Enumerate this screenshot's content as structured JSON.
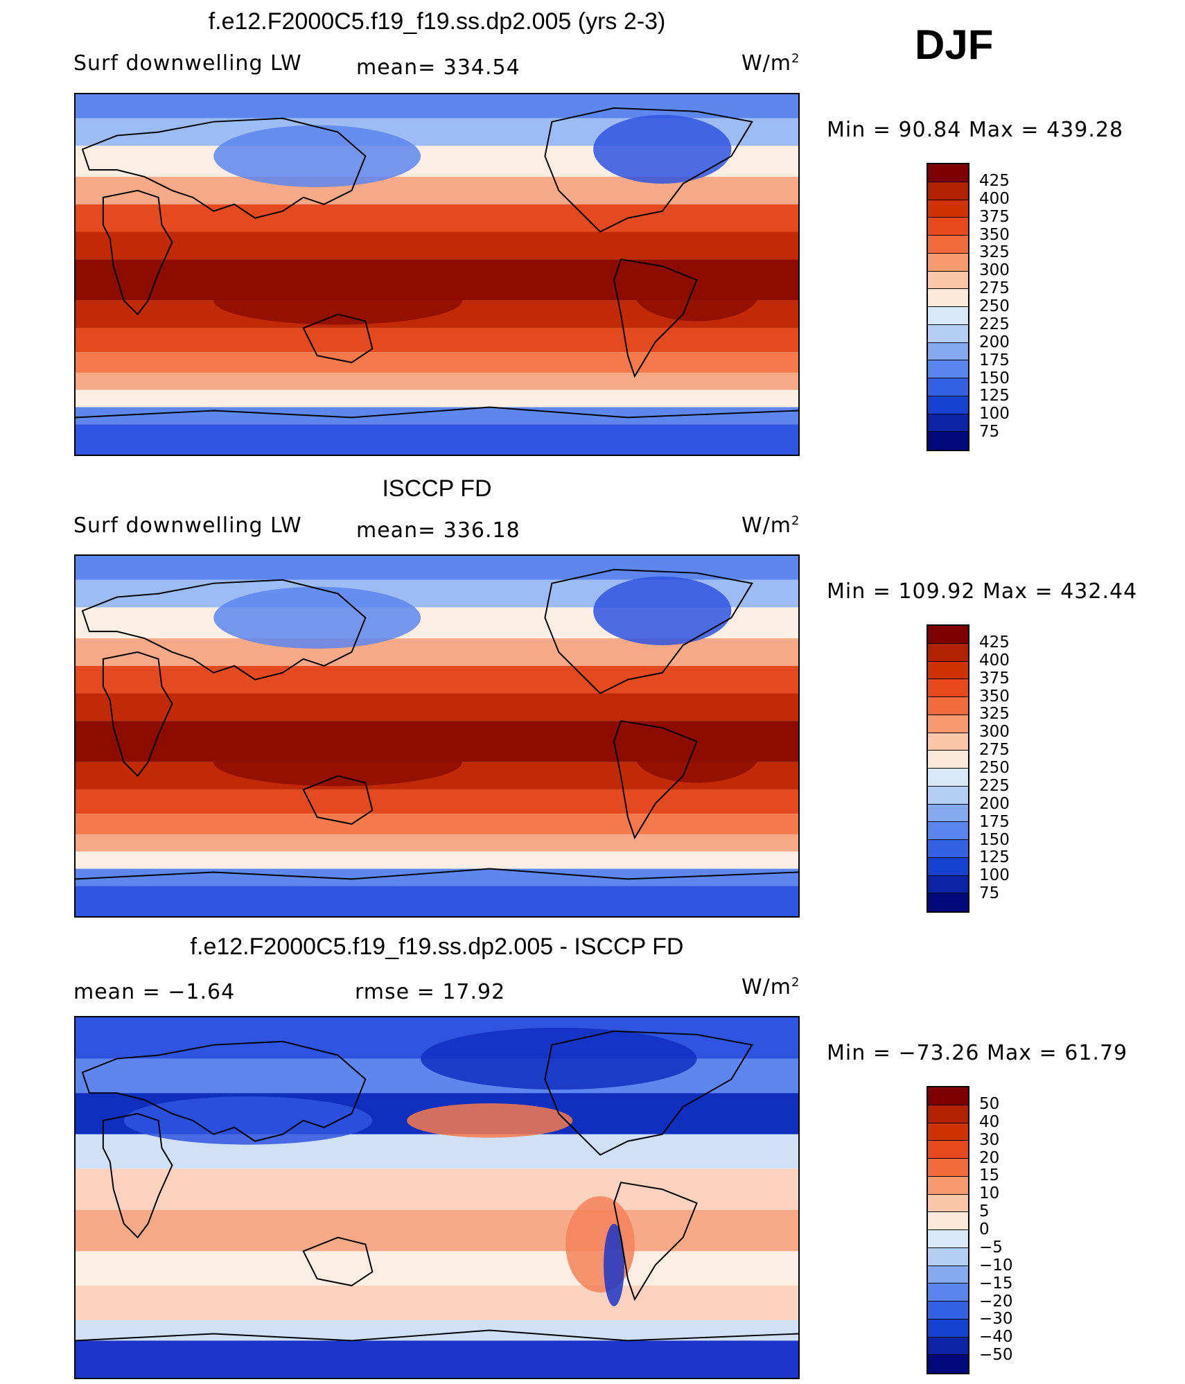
{
  "season": "DJF",
  "panels": [
    {
      "title": "f.e12.F2000C5.f19_f19.ss.dp2.005 (yrs 2-3)",
      "left_label": "Surf downwelling LW",
      "center_label": "mean= 334.54",
      "units": "W/m",
      "units_sup": "2",
      "minmax": "Min =   90.84  Max  =  439.28",
      "colorbar": {
        "ticks": [
          "425",
          "400",
          "375",
          "350",
          "325",
          "300",
          "275",
          "250",
          "225",
          "200",
          "175",
          "150",
          "125",
          "100",
          "75"
        ],
        "colors": [
          "#7f0000",
          "#b22200",
          "#d03300",
          "#e8481e",
          "#f36a3c",
          "#f79a6e",
          "#fcc7a8",
          "#fde9d9",
          "#d8e8f8",
          "#b6d0f5",
          "#85aaf2",
          "#5a85ef",
          "#3460e3",
          "#1741cf",
          "#0c25a8",
          "#00087a"
        ]
      },
      "map_colors": [
        "#8c0d00",
        "#c22a05",
        "#e44a1f",
        "#f47a4c",
        "#f8a987",
        "#fbd2bd",
        "#fdeee3",
        "#cfe0f7",
        "#9cbcf3",
        "#5d86ee",
        "#2f55e0",
        "#0f2fbf"
      ]
    },
    {
      "title": "ISCCP FD",
      "left_label": "Surf downwelling LW",
      "center_label": "mean= 336.18",
      "units": "W/m",
      "units_sup": "2",
      "minmax": "Min  =  109.92  Max  =  432.44",
      "colorbar": {
        "ticks": [
          "425",
          "400",
          "375",
          "350",
          "325",
          "300",
          "275",
          "250",
          "225",
          "200",
          "175",
          "150",
          "125",
          "100",
          "75"
        ],
        "colors": [
          "#7f0000",
          "#b22200",
          "#d03300",
          "#e8481e",
          "#f36a3c",
          "#f79a6e",
          "#fcc7a8",
          "#fde9d9",
          "#d8e8f8",
          "#b6d0f5",
          "#85aaf2",
          "#5a85ef",
          "#3460e3",
          "#1741cf",
          "#0c25a8",
          "#00087a"
        ]
      },
      "map_colors": [
        "#8c0d00",
        "#c22a05",
        "#e44a1f",
        "#f47a4c",
        "#f8a987",
        "#fbd2bd",
        "#fdeee3",
        "#cfe0f7",
        "#9cbcf3",
        "#5d86ee",
        "#2f55e0",
        "#0f2fbf"
      ]
    },
    {
      "title": "f.e12.F2000C5.f19_f19.ss.dp2.005 - ISCCP FD",
      "left_label": "mean =    −1.64",
      "center_label": "rmse =    17.92",
      "units": "W/m",
      "units_sup": "2",
      "minmax": "Min  =  −73.26  Max  =    61.79",
      "colorbar": {
        "ticks": [
          "50",
          "40",
          "30",
          "20",
          "15",
          "10",
          "5",
          "0",
          "−5",
          "−10",
          "−15",
          "−20",
          "−30",
          "−40",
          "−50"
        ],
        "colors": [
          "#7f0000",
          "#b22200",
          "#d03300",
          "#e8481e",
          "#f36a3c",
          "#f79a6e",
          "#fcc7a8",
          "#fde9d9",
          "#d8e8f8",
          "#b6d0f5",
          "#85aaf2",
          "#5a85ef",
          "#3460e3",
          "#1741cf",
          "#0c25a8",
          "#00087a"
        ]
      },
      "map_colors": [
        "#f47a4c",
        "#f8a987",
        "#fbd2bd",
        "#fdeee3",
        "#cfe0f7",
        "#9cbcf3",
        "#5d86ee",
        "#2f55e0",
        "#0f2fbf",
        "#f5835a",
        "#fbd2bd",
        "#1b36c8"
      ]
    }
  ]
}
